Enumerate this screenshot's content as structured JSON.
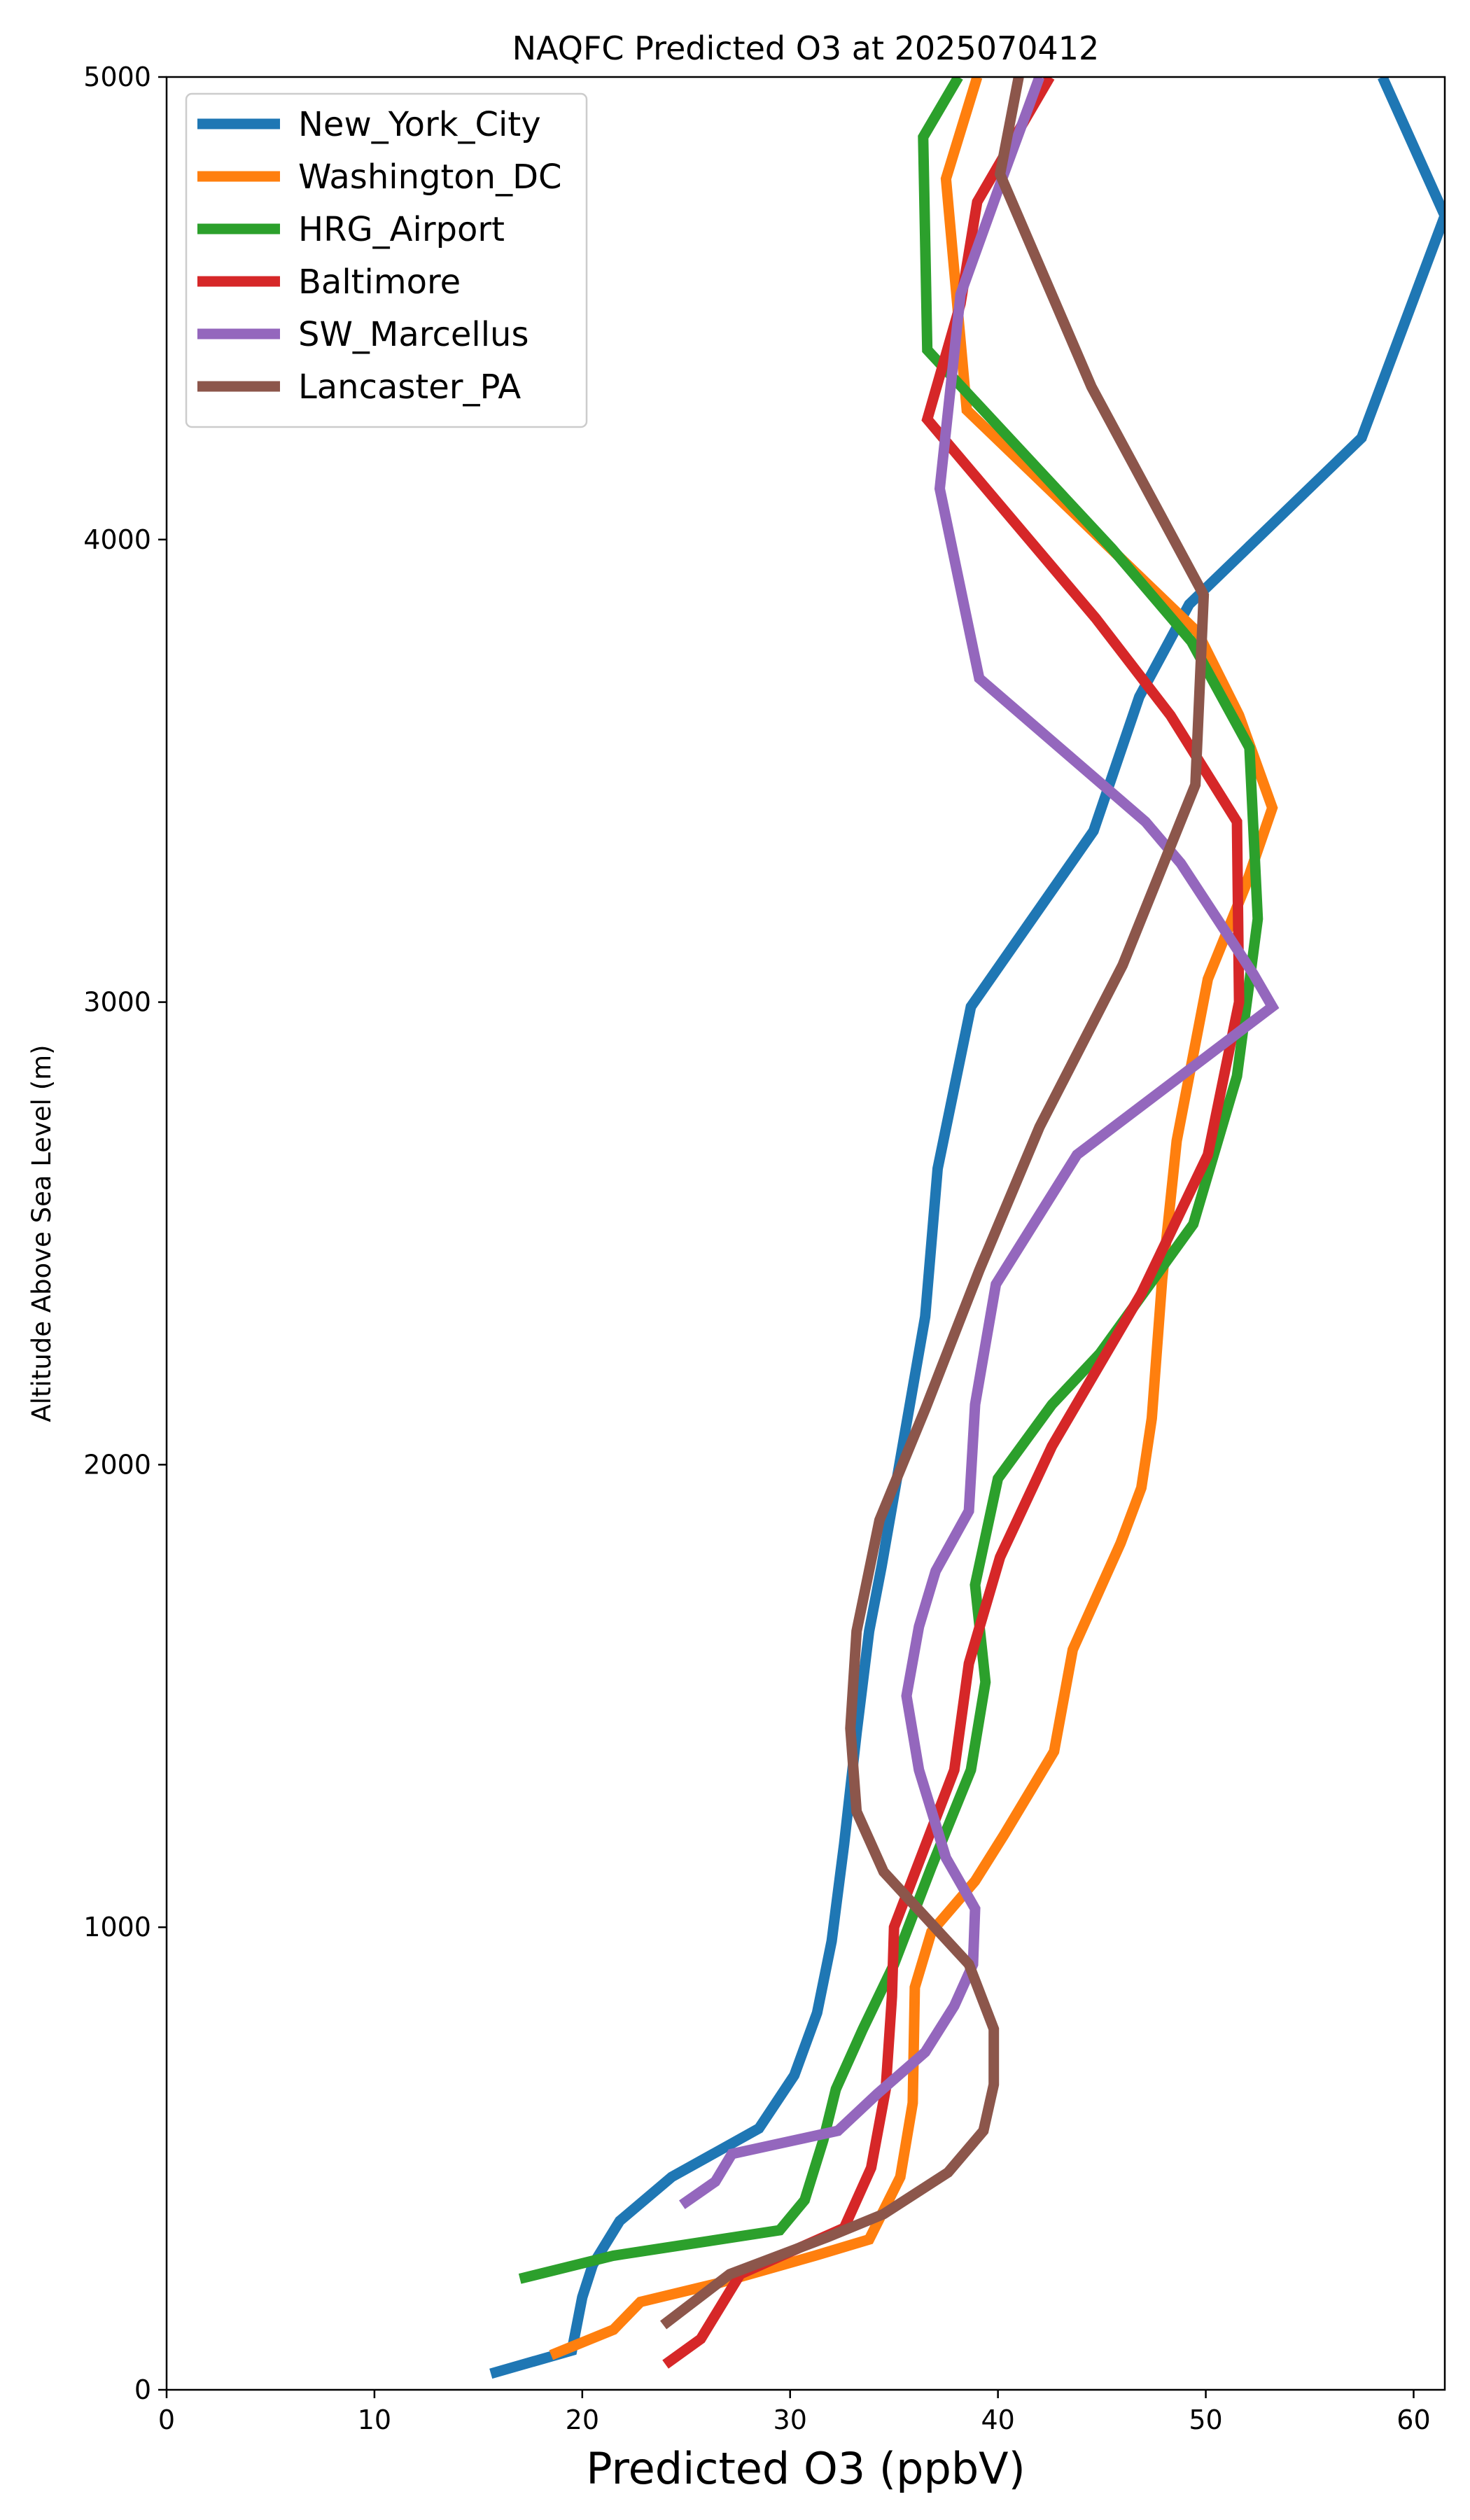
{
  "chart_data": {
    "type": "line",
    "title": "NAQFC Predicted O3 at 2025070412",
    "xlabel": "Predicted O3 (ppbV)",
    "ylabel": "Altitude Above Sea Level (m)",
    "xlim": [
      0,
      61.5
    ],
    "ylim": [
      0,
      5000
    ],
    "xticks": [
      0,
      10,
      20,
      30,
      40,
      50,
      60
    ],
    "yticks": [
      0,
      1000,
      2000,
      3000,
      4000,
      5000
    ],
    "grid": false,
    "legend_position": "top-left",
    "series": [
      {
        "name": "New_York_City",
        "color": "#1f77b4",
        "points": [
          [
            15.6,
            35
          ],
          [
            19.5,
            85
          ],
          [
            20.0,
            200
          ],
          [
            20.5,
            270
          ],
          [
            21.8,
            365
          ],
          [
            24.3,
            460
          ],
          [
            28.5,
            565
          ],
          [
            30.2,
            680
          ],
          [
            31.3,
            815
          ],
          [
            32.0,
            970
          ],
          [
            32.6,
            1180
          ],
          [
            33.2,
            1420
          ],
          [
            33.8,
            1640
          ],
          [
            34.4,
            1780
          ],
          [
            36.5,
            2320
          ],
          [
            37.1,
            2640
          ],
          [
            38.7,
            2990
          ],
          [
            44.6,
            3370
          ],
          [
            46.8,
            3660
          ],
          [
            49.2,
            3860
          ],
          [
            57.5,
            4220
          ],
          [
            61.5,
            4700
          ],
          [
            58.5,
            5000
          ]
        ]
      },
      {
        "name": "Washington_DC",
        "color": "#ff7f0e",
        "points": [
          [
            18.5,
            75
          ],
          [
            21.5,
            130
          ],
          [
            22.8,
            190
          ],
          [
            26.5,
            230
          ],
          [
            31.2,
            290
          ],
          [
            33.8,
            325
          ],
          [
            35.3,
            460
          ],
          [
            35.9,
            620
          ],
          [
            36.0,
            870
          ],
          [
            36.8,
            990
          ],
          [
            38.9,
            1100
          ],
          [
            40.3,
            1200
          ],
          [
            42.7,
            1380
          ],
          [
            43.6,
            1600
          ],
          [
            45.9,
            1830
          ],
          [
            46.9,
            1950
          ],
          [
            47.4,
            2100
          ],
          [
            47.9,
            2400
          ],
          [
            48.6,
            2700
          ],
          [
            50.1,
            3050
          ],
          [
            51.9,
            3250
          ],
          [
            53.2,
            3420
          ],
          [
            51.6,
            3620
          ],
          [
            49.6,
            3800
          ],
          [
            38.5,
            4280
          ],
          [
            37.5,
            4780
          ],
          [
            39.0,
            5000
          ]
        ]
      },
      {
        "name": "HRG_Airport",
        "color": "#2ca02c",
        "points": [
          [
            17.0,
            240
          ],
          [
            21.5,
            290
          ],
          [
            29.5,
            345
          ],
          [
            30.7,
            410
          ],
          [
            31.6,
            540
          ],
          [
            32.2,
            650
          ],
          [
            33.5,
            780
          ],
          [
            35.0,
            920
          ],
          [
            36.8,
            1130
          ],
          [
            38.7,
            1340
          ],
          [
            39.4,
            1530
          ],
          [
            38.9,
            1740
          ],
          [
            40.0,
            1970
          ],
          [
            42.6,
            2130
          ],
          [
            44.9,
            2240
          ],
          [
            49.4,
            2520
          ],
          [
            51.5,
            2840
          ],
          [
            52.5,
            3180
          ],
          [
            52.1,
            3550
          ],
          [
            49.3,
            3780
          ],
          [
            45.5,
            3980
          ],
          [
            36.6,
            4410
          ],
          [
            36.4,
            4870
          ],
          [
            38.1,
            5000
          ]
        ]
      },
      {
        "name": "Baltimore",
        "color": "#d62728",
        "points": [
          [
            24.0,
            55
          ],
          [
            25.7,
            110
          ],
          [
            27.6,
            250
          ],
          [
            32.6,
            350
          ],
          [
            33.9,
            480
          ],
          [
            34.6,
            650
          ],
          [
            34.9,
            850
          ],
          [
            35.0,
            1000
          ],
          [
            37.9,
            1340
          ],
          [
            38.6,
            1570
          ],
          [
            40.1,
            1800
          ],
          [
            42.6,
            2040
          ],
          [
            46.9,
            2370
          ],
          [
            50.1,
            2670
          ],
          [
            51.6,
            3000
          ],
          [
            51.5,
            3390
          ],
          [
            48.3,
            3620
          ],
          [
            44.7,
            3830
          ],
          [
            36.6,
            4260
          ],
          [
            38.2,
            4510
          ],
          [
            39.0,
            4730
          ],
          [
            42.5,
            5000
          ]
        ]
      },
      {
        "name": "SW_Marcellus",
        "color": "#9467bd",
        "points": [
          [
            24.8,
            400
          ],
          [
            26.4,
            450
          ],
          [
            27.2,
            510
          ],
          [
            32.3,
            560
          ],
          [
            34.2,
            640
          ],
          [
            36.5,
            730
          ],
          [
            37.9,
            830
          ],
          [
            38.8,
            920
          ],
          [
            38.9,
            1040
          ],
          [
            37.5,
            1150
          ],
          [
            36.2,
            1340
          ],
          [
            35.6,
            1500
          ],
          [
            36.2,
            1650
          ],
          [
            37.0,
            1770
          ],
          [
            38.6,
            1900
          ],
          [
            38.9,
            2130
          ],
          [
            39.9,
            2390
          ],
          [
            43.8,
            2670
          ],
          [
            53.2,
            2990
          ],
          [
            52.3,
            3060
          ],
          [
            48.8,
            3300
          ],
          [
            47.1,
            3390
          ],
          [
            39.1,
            3700
          ],
          [
            37.2,
            4110
          ],
          [
            38.2,
            4530
          ],
          [
            40.2,
            4780
          ],
          [
            42.0,
            5000
          ]
        ]
      },
      {
        "name": "Lancaster_PA",
        "color": "#8c564b",
        "points": [
          [
            23.9,
            140
          ],
          [
            27.1,
            250
          ],
          [
            31.8,
            330
          ],
          [
            34.5,
            380
          ],
          [
            37.6,
            470
          ],
          [
            39.3,
            560
          ],
          [
            39.8,
            660
          ],
          [
            39.8,
            780
          ],
          [
            38.6,
            920
          ],
          [
            34.5,
            1120
          ],
          [
            33.2,
            1250
          ],
          [
            32.9,
            1430
          ],
          [
            33.2,
            1640
          ],
          [
            34.3,
            1880
          ],
          [
            36.5,
            2120
          ],
          [
            39.1,
            2420
          ],
          [
            42.0,
            2730
          ],
          [
            46.0,
            3080
          ],
          [
            49.5,
            3470
          ],
          [
            49.9,
            3880
          ],
          [
            44.5,
            4330
          ],
          [
            40.1,
            4790
          ],
          [
            41.0,
            5000
          ]
        ]
      }
    ]
  }
}
